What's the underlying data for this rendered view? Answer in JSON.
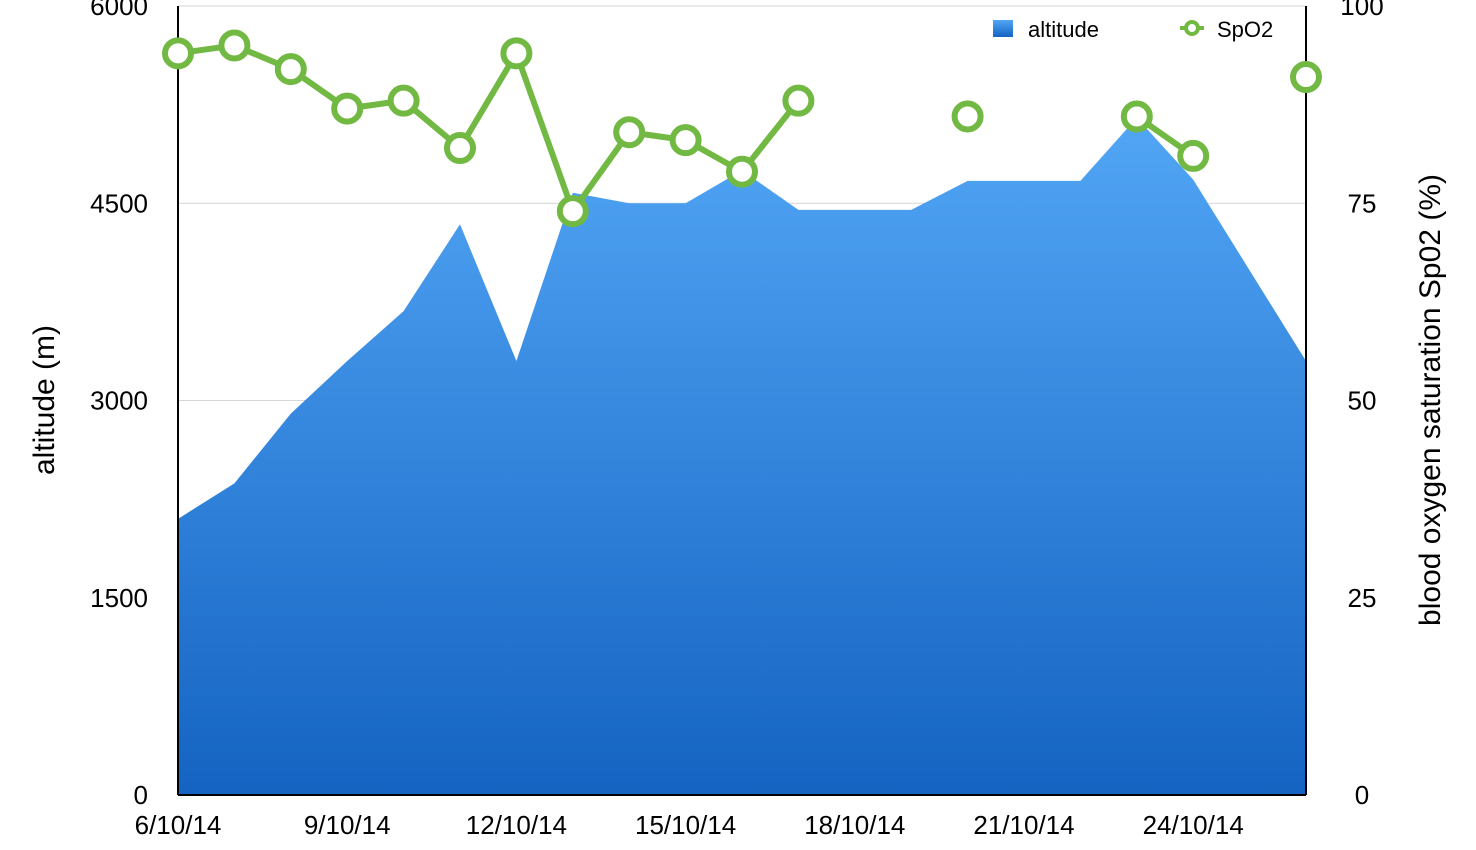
{
  "chart_data": {
    "type": "area",
    "x": [
      "6/10/14",
      "7/10/14",
      "8/10/14",
      "9/10/14",
      "10/10/14",
      "11/10/14",
      "12/10/14",
      "13/10/14",
      "14/10/14",
      "15/10/14",
      "16/10/14",
      "17/10/14",
      "18/10/14",
      "19/10/14",
      "20/10/14",
      "21/10/14",
      "22/10/14",
      "23/10/14",
      "24/10/14",
      "25/10/14",
      "26/10/14"
    ],
    "x_tick_labels": [
      "6/10/14",
      "9/10/14",
      "12/10/14",
      "15/10/14",
      "18/10/14",
      "21/10/14",
      "24/10/14"
    ],
    "series": [
      {
        "name": "altitude",
        "type": "area",
        "axis": "left",
        "color": "#3d8fe6",
        "values": [
          2100,
          2370,
          2900,
          3300,
          3680,
          4340,
          3300,
          4580,
          4500,
          4500,
          4750,
          4450,
          4450,
          4450,
          4670,
          4670,
          4670,
          5150,
          4680,
          3990,
          3300
        ]
      },
      {
        "name": "SpO2",
        "type": "line",
        "axis": "right",
        "color": "#72b944",
        "values": [
          94,
          95,
          92,
          87,
          88,
          82,
          94,
          74,
          84,
          83,
          79,
          88,
          null,
          null,
          86,
          null,
          null,
          86,
          81,
          null,
          91
        ]
      }
    ],
    "ylabel": "altitude (m)",
    "ylabel_right": "blood oxygen saturation Sp02 (%)",
    "ylim": [
      0,
      6000
    ],
    "ylim_right": [
      0,
      100
    ],
    "y_ticks": [
      0,
      1500,
      3000,
      4500,
      6000
    ],
    "y_ticks_right": [
      0,
      25,
      50,
      75,
      100
    ],
    "grid": true,
    "legend": "top-right"
  }
}
